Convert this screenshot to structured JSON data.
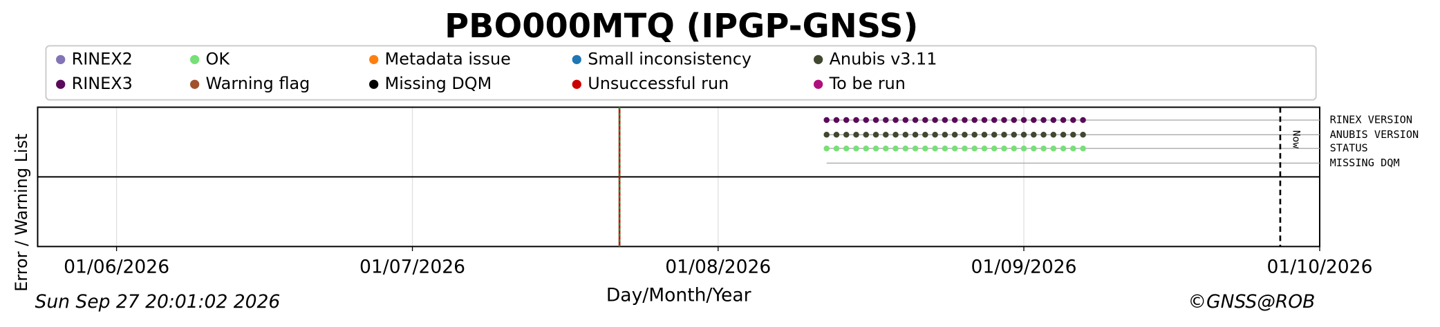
{
  "chart_data": {
    "type": "timeline",
    "title": "PBO000MTQ (IPGP-GNSS)",
    "legend": [
      {
        "name": "RINEX2",
        "color": "#8175b5"
      },
      {
        "name": "RINEX3",
        "color": "#5a0a5a"
      },
      {
        "name": "OK",
        "color": "#77e077"
      },
      {
        "name": "Warning flag",
        "color": "#a0522d"
      },
      {
        "name": "Metadata issue",
        "color": "#ff7f0e"
      },
      {
        "name": "Missing DQM",
        "color": "#000000"
      },
      {
        "name": "Small inconsistency",
        "color": "#1f77b4"
      },
      {
        "name": "Unsuccessful run",
        "color": "#cc0000"
      },
      {
        "name": "Anubis v3.11",
        "color": "#404830"
      },
      {
        "name": "To be run",
        "color": "#b0107e"
      }
    ],
    "rows": [
      {
        "label": "RINEX VERSION",
        "color": "#5a0a5a",
        "x": [
          "2026-08-12",
          "2026-08-13",
          "2026-08-14",
          "2026-08-15",
          "2026-08-16",
          "2026-08-17",
          "2026-08-18",
          "2026-08-19",
          "2026-08-20",
          "2026-08-21",
          "2026-08-22",
          "2026-08-23",
          "2026-08-24",
          "2026-08-25",
          "2026-08-26",
          "2026-08-27",
          "2026-08-28",
          "2026-08-29",
          "2026-08-30",
          "2026-08-31",
          "2026-09-01",
          "2026-09-02",
          "2026-09-03",
          "2026-09-04",
          "2026-09-05",
          "2026-09-06",
          "2026-09-07"
        ]
      },
      {
        "label": "ANUBIS VERSION",
        "color": "#404830",
        "x": [
          "2026-08-12",
          "2026-08-13",
          "2026-08-14",
          "2026-08-15",
          "2026-08-16",
          "2026-08-17",
          "2026-08-18",
          "2026-08-19",
          "2026-08-20",
          "2026-08-21",
          "2026-08-22",
          "2026-08-23",
          "2026-08-24",
          "2026-08-25",
          "2026-08-26",
          "2026-08-27",
          "2026-08-28",
          "2026-08-29",
          "2026-08-30",
          "2026-08-31",
          "2026-09-01",
          "2026-09-02",
          "2026-09-03",
          "2026-09-04",
          "2026-09-05",
          "2026-09-06",
          "2026-09-07"
        ]
      },
      {
        "label": "STATUS",
        "color": "#77e077",
        "x": [
          "2026-08-12",
          "2026-08-13",
          "2026-08-14",
          "2026-08-15",
          "2026-08-16",
          "2026-08-17",
          "2026-08-18",
          "2026-08-19",
          "2026-08-20",
          "2026-08-21",
          "2026-08-22",
          "2026-08-23",
          "2026-08-24",
          "2026-08-25",
          "2026-08-26",
          "2026-08-27",
          "2026-08-28",
          "2026-08-29",
          "2026-08-30",
          "2026-08-31",
          "2026-09-01",
          "2026-09-02",
          "2026-09-03",
          "2026-09-04",
          "2026-09-05",
          "2026-09-06",
          "2026-09-07"
        ]
      },
      {
        "label": "MISSING DQM",
        "color": "#000000",
        "x": []
      }
    ],
    "event_x": "2026-07-22",
    "now": {
      "x": "2026-09-27",
      "label": "Now"
    },
    "xlim": [
      "2026-05-24",
      "2026-10-01"
    ],
    "xticks": [
      {
        "value": "2026-06-01",
        "label": "01/06/2026"
      },
      {
        "value": "2026-07-01",
        "label": "01/07/2026"
      },
      {
        "value": "2026-08-01",
        "label": "01/08/2026"
      },
      {
        "value": "2026-09-01",
        "label": "01/09/2026"
      },
      {
        "value": "2026-10-01",
        "label": "01/10/2026"
      }
    ],
    "grid": true,
    "xlabel": "Day/Month/Year",
    "ylabel": "Error / Warning List",
    "timestamp": "Sun Sep 27 20:01:02 2026",
    "copyright": "©GNSS@ROB"
  }
}
